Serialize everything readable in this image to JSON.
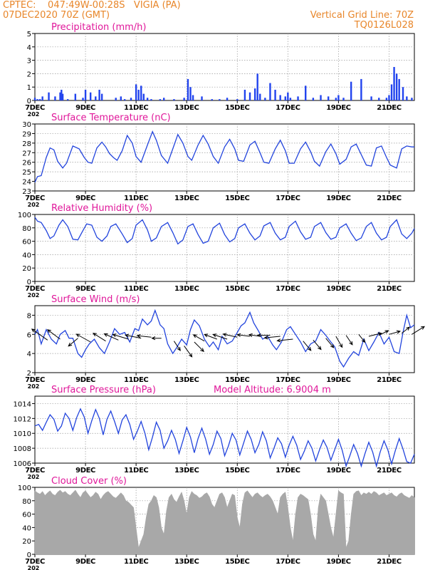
{
  "header": {
    "station_line": "CPTEC:    047:49W-00:28S   VIGIA (PA)",
    "date_line": "07DEC2020 70Z (GMT)",
    "grid_line_label": "Vertical Grid Line: 70Z",
    "run_id": "TQ0126L028"
  },
  "colors": {
    "header": "#e8862a",
    "panel_title": "#e0179a",
    "series": "#2244dd",
    "bars": "#2244ee",
    "cloud_fill": "#a8a8a8",
    "grid": "#999999"
  },
  "x_axis": {
    "day_start": 7,
    "day_end": 22,
    "tick_days": [
      7,
      9,
      11,
      13,
      15,
      17,
      19,
      21
    ],
    "tick_labels": [
      "7DEC",
      "9DEC",
      "11DEC",
      "13DEC",
      "15DEC",
      "17DEC",
      "19DEC",
      "21DEC"
    ],
    "year_fragment": "202"
  },
  "chart_data": [
    {
      "name": "precipitation",
      "type": "bar",
      "title": "Precipitation  (mm/h)",
      "ylim": [
        0,
        5
      ],
      "yticks": [
        0,
        1,
        2,
        3,
        4,
        5
      ],
      "grid": true,
      "x": [
        7.0,
        7.1,
        7.2,
        7.3,
        7.55,
        7.8,
        8.0,
        8.05,
        8.1,
        8.3,
        8.6,
        8.9,
        9.0,
        9.2,
        9.4,
        9.55,
        9.65,
        10.2,
        10.4,
        10.55,
        10.8,
        11.0,
        11.1,
        11.2,
        11.3,
        11.45,
        11.6,
        11.95,
        12.1,
        12.5,
        12.9,
        13.05,
        13.15,
        13.25,
        13.6,
        14.0,
        14.3,
        14.6,
        15.0,
        15.3,
        15.5,
        15.7,
        15.8,
        15.9,
        16.1,
        16.3,
        16.5,
        16.7,
        16.9,
        17.0,
        17.1,
        17.4,
        17.7,
        18.0,
        18.3,
        18.6,
        18.9,
        19.0,
        19.2,
        19.5,
        19.9,
        20.3,
        20.6,
        20.9,
        21.0,
        21.1,
        21.2,
        21.3,
        21.4,
        21.55,
        21.7,
        21.9
      ],
      "values": [
        0.2,
        0.1,
        0.1,
        0.3,
        0.6,
        0.3,
        0.6,
        0.8,
        0.5,
        0.1,
        0.5,
        0.2,
        0.8,
        0.6,
        0.3,
        0.8,
        0.5,
        0.2,
        0.3,
        0.1,
        0.2,
        1.2,
        0.8,
        1.1,
        0.5,
        0.2,
        0.1,
        0.1,
        0.2,
        0.1,
        0.2,
        1.6,
        1.0,
        0.4,
        0.3,
        0.1,
        0.1,
        0.2,
        0.1,
        0.8,
        0.6,
        0.9,
        2.0,
        0.5,
        0.2,
        1.3,
        0.8,
        0.4,
        0.3,
        0.6,
        0.2,
        0.3,
        1.1,
        0.2,
        0.4,
        0.3,
        0.2,
        0.4,
        0.2,
        1.4,
        1.6,
        0.3,
        0.2,
        0.2,
        0.4,
        1.2,
        2.5,
        2.0,
        1.6,
        1.0,
        0.3,
        0.2
      ]
    },
    {
      "name": "temperature",
      "type": "line",
      "title": "Surface Temperature (nC)",
      "ylim": [
        23,
        30
      ],
      "yticks": [
        23,
        24,
        25,
        26,
        27,
        28,
        29,
        30
      ],
      "grid": true,
      "x": [
        7.0,
        7.1,
        7.25,
        7.45,
        7.6,
        7.75,
        7.9,
        8.1,
        8.25,
        8.5,
        8.75,
        8.95,
        9.1,
        9.25,
        9.45,
        9.65,
        9.8,
        9.95,
        10.1,
        10.25,
        10.45,
        10.65,
        10.85,
        11.0,
        11.2,
        11.45,
        11.65,
        11.8,
        12.0,
        12.25,
        12.45,
        12.65,
        12.85,
        13.05,
        13.2,
        13.45,
        13.65,
        13.85,
        14.05,
        14.25,
        14.5,
        14.7,
        14.9,
        15.05,
        15.25,
        15.5,
        15.7,
        15.9,
        16.05,
        16.25,
        16.5,
        16.7,
        16.9,
        17.05,
        17.25,
        17.5,
        17.7,
        17.9,
        18.05,
        18.25,
        18.5,
        18.7,
        18.9,
        19.05,
        19.3,
        19.5,
        19.7,
        19.9,
        20.1,
        20.3,
        20.5,
        20.7,
        20.9,
        21.05,
        21.3,
        21.5,
        21.7,
        21.9,
        22.0
      ],
      "values": [
        23.9,
        24.5,
        24.6,
        26.5,
        27.5,
        27.3,
        26.1,
        25.4,
        25.9,
        27.7,
        27.4,
        26.5,
        26.0,
        25.9,
        27.5,
        28.1,
        27.6,
        26.9,
        26.5,
        26.2,
        27.2,
        28.8,
        28.0,
        26.6,
        26.0,
        27.8,
        29.2,
        28.3,
        26.7,
        25.9,
        27.4,
        28.9,
        28.0,
        26.6,
        26.2,
        27.8,
        28.8,
        27.9,
        26.6,
        25.9,
        27.6,
        28.4,
        27.4,
        26.2,
        26.1,
        27.8,
        28.2,
        27.0,
        26.0,
        25.9,
        27.4,
        28.3,
        27.2,
        25.9,
        25.9,
        27.4,
        28.1,
        27.1,
        26.1,
        25.6,
        27.1,
        27.9,
        26.9,
        25.8,
        26.3,
        27.6,
        27.9,
        26.8,
        25.7,
        25.6,
        27.5,
        27.7,
        26.5,
        25.7,
        25.4,
        27.4,
        27.7,
        27.6,
        27.6
      ]
    },
    {
      "name": "humidity",
      "type": "line",
      "title": "Relative Humidity (%)",
      "ylim": [
        0,
        100
      ],
      "yticks": [
        0,
        20,
        40,
        60,
        80,
        100
      ],
      "grid": true,
      "x": [
        7.0,
        7.1,
        7.25,
        7.45,
        7.6,
        7.75,
        7.95,
        8.1,
        8.3,
        8.5,
        8.7,
        8.9,
        9.05,
        9.25,
        9.45,
        9.65,
        9.85,
        10.0,
        10.2,
        10.45,
        10.65,
        10.85,
        11.0,
        11.25,
        11.45,
        11.6,
        11.8,
        12.0,
        12.25,
        12.45,
        12.65,
        12.85,
        13.05,
        13.25,
        13.45,
        13.65,
        13.85,
        14.05,
        14.3,
        14.5,
        14.7,
        14.9,
        15.05,
        15.3,
        15.5,
        15.7,
        15.9,
        16.05,
        16.3,
        16.5,
        16.7,
        16.9,
        17.05,
        17.3,
        17.5,
        17.7,
        17.9,
        18.05,
        18.3,
        18.5,
        18.7,
        18.9,
        19.05,
        19.3,
        19.5,
        19.7,
        19.9,
        20.1,
        20.3,
        20.5,
        20.7,
        20.9,
        21.05,
        21.3,
        21.5,
        21.7,
        21.9,
        22.0
      ],
      "values": [
        96,
        90,
        88,
        76,
        64,
        68,
        84,
        92,
        82,
        63,
        62,
        76,
        86,
        84,
        66,
        60,
        68,
        82,
        86,
        71,
        58,
        64,
        84,
        92,
        77,
        60,
        65,
        82,
        88,
        73,
        56,
        62,
        82,
        86,
        70,
        57,
        60,
        80,
        87,
        70,
        59,
        64,
        80,
        86,
        72,
        62,
        68,
        83,
        88,
        72,
        62,
        66,
        82,
        90,
        74,
        63,
        66,
        82,
        88,
        73,
        63,
        66,
        80,
        86,
        72,
        61,
        65,
        82,
        88,
        72,
        62,
        66,
        82,
        92,
        71,
        64,
        72,
        79
      ]
    },
    {
      "name": "wind",
      "type": "line",
      "title": "Surface Wind (m/s)",
      "ylim": [
        2,
        9
      ],
      "yticks": [
        2,
        4,
        6,
        8
      ],
      "grid": true,
      "x": [
        7.0,
        7.1,
        7.25,
        7.45,
        7.65,
        7.85,
        8.0,
        8.2,
        8.35,
        8.5,
        8.7,
        8.85,
        9.0,
        9.15,
        9.35,
        9.55,
        9.75,
        9.95,
        10.15,
        10.35,
        10.55,
        10.75,
        10.95,
        11.1,
        11.25,
        11.45,
        11.6,
        11.75,
        11.95,
        12.1,
        12.25,
        12.45,
        12.6,
        12.8,
        13.0,
        13.15,
        13.3,
        13.5,
        13.7,
        13.9,
        14.05,
        14.25,
        14.4,
        14.6,
        14.8,
        15.0,
        15.15,
        15.3,
        15.5,
        15.65,
        15.85,
        16.0,
        16.2,
        16.4,
        16.55,
        16.75,
        16.95,
        17.1,
        17.3,
        17.5,
        17.7,
        17.9,
        18.1,
        18.3,
        18.5,
        18.7,
        18.85,
        19.05,
        19.2,
        19.4,
        19.6,
        19.8,
        20.0,
        20.2,
        20.4,
        20.6,
        20.8,
        21.0,
        21.2,
        21.4,
        21.55,
        21.7,
        21.85,
        22.0
      ],
      "values": [
        6.0,
        6.5,
        5.0,
        6.5,
        5.5,
        5.0,
        6.0,
        6.4,
        5.6,
        5.6,
        4.0,
        3.6,
        4.4,
        5.0,
        5.5,
        4.6,
        4.0,
        5.2,
        6.6,
        6.0,
        6.2,
        5.2,
        6.6,
        6.4,
        7.6,
        7.0,
        7.4,
        8.5,
        7.0,
        6.6,
        5.0,
        4.0,
        4.6,
        5.5,
        4.9,
        6.5,
        7.5,
        6.9,
        5.5,
        4.7,
        5.2,
        4.4,
        5.8,
        5.0,
        5.3,
        6.2,
        6.9,
        7.2,
        8.3,
        7.2,
        6.3,
        5.5,
        5.8,
        4.9,
        4.4,
        5.2,
        6.5,
        6.8,
        6.0,
        5.2,
        4.2,
        5.0,
        5.3,
        6.5,
        5.9,
        5.2,
        4.7,
        3.2,
        2.6,
        3.5,
        4.2,
        3.8,
        5.5,
        4.3,
        5.2,
        6.2,
        5.0,
        5.7,
        4.2,
        4.0,
        6.2,
        8.0,
        6.7,
        7.0
      ],
      "vectors_x": [
        7.5,
        8.0,
        8.7,
        9.2,
        9.8,
        10.3,
        10.7,
        11.2,
        11.6,
        12.0,
        12.5,
        12.9,
        13.3,
        13.7,
        14.2,
        14.6,
        15.0,
        15.5,
        15.9,
        16.3,
        16.7,
        17.2,
        17.6,
        18.0,
        18.5,
        18.9,
        19.3,
        19.8,
        20.2,
        20.6,
        21.0,
        21.5,
        21.9
      ],
      "vectors_level": [
        5.4,
        5.5,
        5.6,
        5.2,
        5.3,
        5.4,
        5.5,
        5.6,
        5.7,
        5.6,
        5.3,
        4.8,
        5.2,
        5.3,
        5.5,
        5.5,
        5.7,
        5.8,
        5.8,
        5.9,
        5.8,
        5.5,
        5.3,
        5.4,
        5.6,
        5.8,
        5.9,
        6.0,
        5.8,
        5.9,
        6.0,
        6.1,
        6.0
      ],
      "vectors_u": [
        -1.0,
        -0.8,
        -0.6,
        -0.9,
        -0.8,
        -0.9,
        -1.0,
        -1.0,
        -0.9,
        -0.6,
        0.4,
        0.5,
        0.6,
        -0.7,
        -0.8,
        -0.9,
        -0.9,
        -0.8,
        -0.7,
        -0.8,
        -1.0,
        -1.0,
        0.5,
        0.5,
        0.5,
        0.4,
        0.4,
        0.4,
        0.8,
        0.6,
        0.7,
        0.5,
        0.8
      ],
      "vectors_v": [
        0.7,
        0.6,
        -0.5,
        0.5,
        0.5,
        0.4,
        0.3,
        0.2,
        0.1,
        0.0,
        -0.6,
        -0.7,
        -0.6,
        0.4,
        0.3,
        0.3,
        0.2,
        0.1,
        0.1,
        0.0,
        -0.1,
        -0.1,
        -0.6,
        -0.6,
        -0.6,
        -0.7,
        -0.6,
        -0.5,
        0.2,
        0.3,
        0.2,
        0.4,
        0.5
      ]
    },
    {
      "name": "pressure",
      "type": "line",
      "title": "Surface Pressure (hPa)",
      "annotation": "Model Altitude: 6.9004  m",
      "ylim": [
        1006,
        1015
      ],
      "yticks": [
        1006,
        1008,
        1010,
        1012,
        1014
      ],
      "grid": true,
      "x": [
        7.0,
        7.15,
        7.3,
        7.45,
        7.6,
        7.75,
        7.9,
        8.05,
        8.2,
        8.35,
        8.5,
        8.65,
        8.8,
        8.95,
        9.1,
        9.25,
        9.4,
        9.55,
        9.7,
        9.85,
        10.0,
        10.15,
        10.3,
        10.45,
        10.6,
        10.75,
        10.9,
        11.05,
        11.2,
        11.35,
        11.5,
        11.65,
        11.8,
        11.95,
        12.1,
        12.25,
        12.4,
        12.55,
        12.7,
        12.85,
        13.0,
        13.15,
        13.3,
        13.45,
        13.6,
        13.75,
        13.9,
        14.05,
        14.2,
        14.35,
        14.5,
        14.65,
        14.8,
        14.95,
        15.1,
        15.25,
        15.4,
        15.55,
        15.7,
        15.85,
        16.0,
        16.15,
        16.3,
        16.45,
        16.6,
        16.75,
        16.9,
        17.05,
        17.2,
        17.35,
        17.5,
        17.65,
        17.8,
        17.95,
        18.1,
        18.25,
        18.4,
        18.55,
        18.7,
        18.85,
        19.0,
        19.15,
        19.3,
        19.45,
        19.6,
        19.75,
        19.9,
        20.05,
        20.2,
        20.35,
        20.5,
        20.65,
        20.8,
        20.95,
        21.1,
        21.25,
        21.4,
        21.55,
        21.7,
        21.85,
        22.0
      ],
      "values": [
        1011.0,
        1011.2,
        1010.4,
        1011.5,
        1012.5,
        1011.9,
        1010.3,
        1011.0,
        1012.7,
        1012.0,
        1010.4,
        1012.1,
        1013.3,
        1012.2,
        1010.0,
        1011.7,
        1013.2,
        1012.0,
        1009.8,
        1011.9,
        1013.0,
        1011.6,
        1010.0,
        1011.8,
        1012.5,
        1011.2,
        1009.2,
        1010.3,
        1011.6,
        1010.0,
        1007.8,
        1009.5,
        1011.5,
        1010.4,
        1008.0,
        1009.0,
        1010.4,
        1009.2,
        1007.3,
        1009.0,
        1010.8,
        1009.5,
        1007.4,
        1009.3,
        1010.7,
        1009.2,
        1007.2,
        1008.5,
        1010.3,
        1009.3,
        1007.0,
        1008.3,
        1010.0,
        1009.1,
        1007.1,
        1008.7,
        1010.3,
        1009.2,
        1007.4,
        1008.5,
        1010.2,
        1009.0,
        1006.7,
        1008.0,
        1009.4,
        1008.6,
        1006.8,
        1008.4,
        1009.6,
        1008.4,
        1006.5,
        1007.6,
        1009.0,
        1008.0,
        1006.3,
        1007.8,
        1009.1,
        1008.1,
        1006.4,
        1007.8,
        1009.2,
        1007.7,
        1005.6,
        1007.0,
        1008.5,
        1007.3,
        1005.6,
        1007.3,
        1008.8,
        1007.5,
        1005.6,
        1007.5,
        1009.0,
        1007.8,
        1005.9,
        1007.7,
        1009.3,
        1007.9,
        1006.2,
        1006.0,
        1007.2
      ]
    },
    {
      "name": "cloud_cover",
      "type": "area",
      "title": "Cloud Cover (%)",
      "ylim": [
        0,
        100
      ],
      "yticks": [
        0,
        20,
        40,
        60,
        80,
        100
      ],
      "grid": true,
      "x": [
        7.0,
        7.1,
        7.2,
        7.3,
        7.4,
        7.5,
        7.6,
        7.7,
        7.8,
        7.9,
        8.0,
        8.1,
        8.2,
        8.3,
        8.4,
        8.5,
        8.6,
        8.7,
        8.8,
        8.9,
        9.0,
        9.1,
        9.2,
        9.3,
        9.4,
        9.5,
        9.6,
        9.7,
        9.8,
        9.9,
        10.0,
        10.1,
        10.2,
        10.3,
        10.4,
        10.5,
        10.6,
        10.7,
        10.8,
        10.9,
        11.0,
        11.1,
        11.2,
        11.3,
        11.4,
        11.5,
        11.6,
        11.7,
        11.8,
        11.9,
        12.0,
        12.1,
        12.2,
        12.3,
        12.4,
        12.5,
        12.6,
        12.7,
        12.8,
        12.9,
        13.0,
        13.1,
        13.2,
        13.3,
        13.4,
        13.5,
        13.6,
        13.7,
        13.8,
        13.9,
        14.0,
        14.1,
        14.2,
        14.3,
        14.4,
        14.5,
        14.6,
        14.7,
        14.8,
        14.9,
        15.0,
        15.1,
        15.2,
        15.3,
        15.4,
        15.5,
        15.6,
        15.7,
        15.8,
        15.9,
        16.0,
        16.1,
        16.2,
        16.3,
        16.4,
        16.5,
        16.6,
        16.7,
        16.8,
        16.9,
        17.0,
        17.1,
        17.2,
        17.3,
        17.4,
        17.5,
        17.6,
        17.7,
        17.8,
        17.9,
        18.0,
        18.1,
        18.2,
        18.3,
        18.4,
        18.5,
        18.6,
        18.7,
        18.8,
        18.9,
        19.0,
        19.1,
        19.2,
        19.3,
        19.4,
        19.5,
        19.6,
        19.7,
        19.8,
        19.9,
        20.0,
        20.1,
        20.2,
        20.3,
        20.4,
        20.5,
        20.6,
        20.7,
        20.8,
        20.9,
        21.0,
        21.1,
        21.2,
        21.3,
        21.4,
        21.5,
        21.6,
        21.7,
        21.8,
        21.9,
        22.0
      ],
      "values": [
        95,
        92,
        90,
        94,
        88,
        92,
        95,
        90,
        88,
        93,
        96,
        92,
        94,
        90,
        88,
        92,
        96,
        90,
        85,
        92,
        95,
        90,
        85,
        88,
        93,
        90,
        82,
        88,
        92,
        94,
        90,
        86,
        84,
        88,
        92,
        88,
        80,
        78,
        74,
        70,
        40,
        10,
        20,
        30,
        55,
        75,
        80,
        88,
        85,
        70,
        40,
        30,
        65,
        85,
        90,
        82,
        78,
        86,
        93,
        80,
        60,
        85,
        94,
        90,
        88,
        84,
        86,
        90,
        92,
        86,
        75,
        70,
        80,
        90,
        92,
        85,
        70,
        80,
        90,
        88,
        55,
        40,
        75,
        92,
        95,
        90,
        85,
        90,
        92,
        88,
        85,
        88,
        90,
        86,
        80,
        70,
        60,
        85,
        90,
        93,
        70,
        40,
        20,
        60,
        85,
        90,
        88,
        85,
        82,
        60,
        30,
        20,
        70,
        90,
        85,
        80,
        60,
        40,
        25,
        60,
        95,
        92,
        90,
        10,
        20,
        60,
        90,
        94,
        95,
        88,
        92,
        90,
        93,
        90,
        94,
        92,
        88,
        90,
        92,
        88,
        90,
        92,
        88,
        86,
        90,
        92,
        88,
        86,
        84,
        88,
        85
      ]
    }
  ]
}
